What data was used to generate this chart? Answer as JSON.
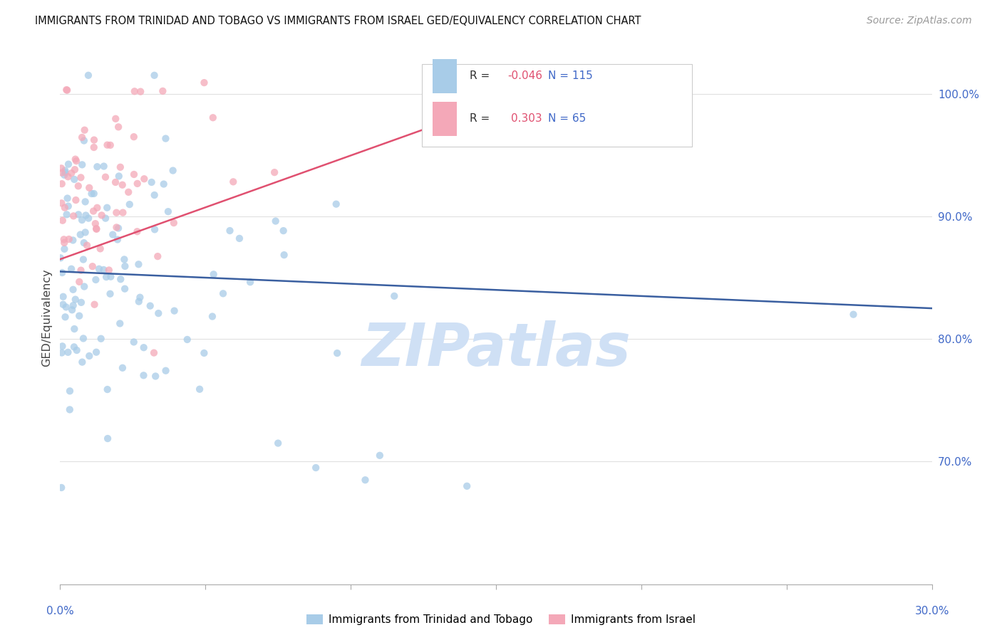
{
  "title": "IMMIGRANTS FROM TRINIDAD AND TOBAGO VS IMMIGRANTS FROM ISRAEL GED/EQUIVALENCY CORRELATION CHART",
  "source": "Source: ZipAtlas.com",
  "ylabel": "GED/Equivalency",
  "xmin": 0.0,
  "xmax": 30.0,
  "ymin": 60.0,
  "ymax": 103.5,
  "blue_R": -0.046,
  "blue_N": 115,
  "pink_R": 0.303,
  "pink_N": 65,
  "blue_color": "#a8cce8",
  "pink_color": "#f4a8b8",
  "blue_line_color": "#3a5fa0",
  "pink_line_color": "#e05070",
  "legend_label_blue": "Immigrants from Trinidad and Tobago",
  "legend_label_pink": "Immigrants from Israel",
  "watermark": "ZIPatlas",
  "watermark_color": "#cfe0f5",
  "background_color": "#ffffff",
  "grid_color": "#e0e0e0",
  "title_color": "#111111",
  "axis_label_color": "#4169C8",
  "blue_trend_x": [
    0.0,
    30.0
  ],
  "blue_trend_y": [
    85.5,
    82.5
  ],
  "pink_trend_x": [
    0.0,
    13.0
  ],
  "pink_trend_y": [
    86.5,
    97.5
  ],
  "seed": 42
}
